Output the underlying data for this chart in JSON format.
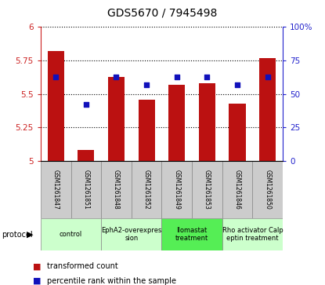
{
  "title": "GDS5670 / 7945498",
  "samples": [
    "GSM1261847",
    "GSM1261851",
    "GSM1261848",
    "GSM1261852",
    "GSM1261849",
    "GSM1261853",
    "GSM1261846",
    "GSM1261850"
  ],
  "transformed_counts": [
    5.82,
    5.08,
    5.63,
    5.46,
    5.57,
    5.58,
    5.43,
    5.77
  ],
  "percentile_ranks": [
    63,
    42,
    63,
    57,
    63,
    63,
    57,
    63
  ],
  "ylim_left": [
    5.0,
    6.0
  ],
  "ylim_right": [
    0,
    100
  ],
  "yticks_left": [
    5.0,
    5.25,
    5.5,
    5.75,
    6.0
  ],
  "yticks_right": [
    0,
    25,
    50,
    75,
    100
  ],
  "ytick_labels_left": [
    "5",
    "5.25",
    "5.5",
    "5.75",
    "6"
  ],
  "ytick_labels_right": [
    "0",
    "25",
    "50",
    "75",
    "100%"
  ],
  "bar_color": "#bb1111",
  "dot_color": "#1111bb",
  "bar_base": 5.0,
  "protocols": [
    {
      "label": "control",
      "indices": [
        0,
        1
      ],
      "color": "#ccffcc"
    },
    {
      "label": "EphA2-overexpres\nsion",
      "indices": [
        2,
        3
      ],
      "color": "#ccffcc"
    },
    {
      "label": "Ilomastat\ntreatment",
      "indices": [
        4,
        5
      ],
      "color": "#55ee55"
    },
    {
      "label": "Rho activator Calp\neptin treatment",
      "indices": [
        6,
        7
      ],
      "color": "#ccffcc"
    }
  ],
  "sample_bg_color": "#cccccc",
  "protocol_border_color": "#888888",
  "left_axis_color": "#cc2222",
  "right_axis_color": "#2222cc",
  "bar_width": 0.55
}
